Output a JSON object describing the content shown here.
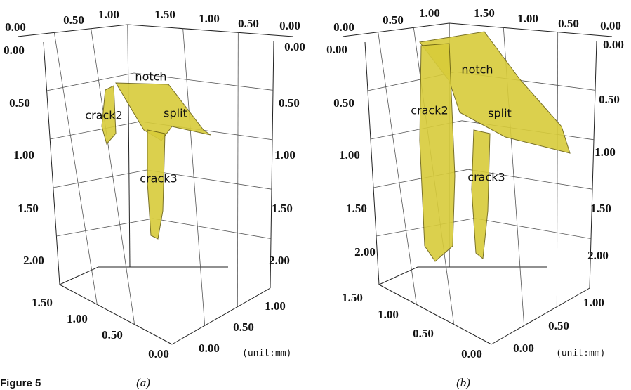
{
  "figure": {
    "label": "Figure 5",
    "panels": [
      {
        "caption": "(a)",
        "top_ticks": [
          "0.00",
          "0.50",
          "1.00",
          "1.50",
          "1.00",
          "0.50",
          "0.00"
        ],
        "left_ticks": [
          "0.00",
          "0.50",
          "1.00",
          "1.50",
          "2.00"
        ],
        "right_ticks": [
          "0.00",
          "0.50",
          "1.00",
          "1.50",
          "2.00"
        ],
        "bottom_left_ticks": [
          "1.50",
          "1.00",
          "0.50",
          "0.00"
        ],
        "bottom_right_ticks": [
          "0.00",
          "0.50",
          "1.00"
        ],
        "annotations": [
          "notch",
          "crack2",
          "split",
          "crack3"
        ],
        "unit": "(unit:mm)"
      },
      {
        "caption": "(b)",
        "top_ticks": [
          "0.00",
          "0.50",
          "1.00",
          "1.50",
          "1.00",
          "0.50",
          "0.00"
        ],
        "left_ticks": [
          "0.00",
          "0.50",
          "1.00",
          "1.50",
          "2.00"
        ],
        "right_ticks": [
          "0.00",
          "0.50",
          "1.00",
          "1.50",
          "2.00"
        ],
        "bottom_left_ticks": [
          "1.50",
          "1.00",
          "0.50",
          "0.00"
        ],
        "bottom_right_ticks": [
          "0.00",
          "0.50",
          "1.00"
        ],
        "annotations": [
          "notch",
          "crack2",
          "split",
          "crack3"
        ],
        "unit": "(unit:mm)"
      }
    ]
  }
}
